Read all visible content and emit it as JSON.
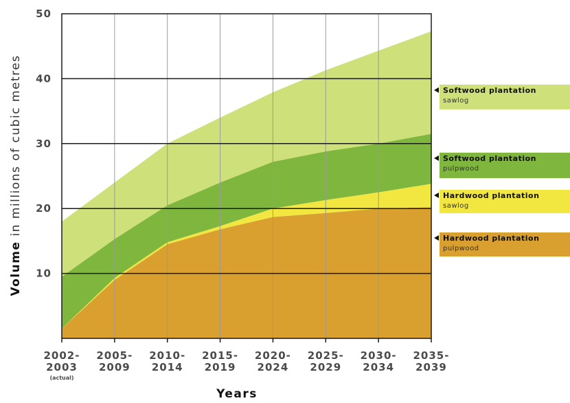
{
  "chart_data": {
    "type": "area",
    "stacked": true,
    "x": [
      "2002-2003",
      "2005-2009",
      "2010-2014",
      "2015-2019",
      "2020-2024",
      "2025-2029",
      "2030-2034",
      "2035-2039"
    ],
    "x_tick_labels": [
      [
        "2002-",
        "2003"
      ],
      [
        "2005-",
        "2009"
      ],
      [
        "2010-",
        "2014"
      ],
      [
        "2015-",
        "2019"
      ],
      [
        "2020-",
        "2024"
      ],
      [
        "2025-",
        "2029"
      ],
      [
        "2030-",
        "2034"
      ],
      [
        "2035-",
        "2039"
      ]
    ],
    "x_tick_note": "(actual)",
    "xlabel": "Years",
    "ylabel_bold": "Volume",
    "ylabel_rest": " in millions of cubic metres",
    "ylim": [
      0,
      50
    ],
    "y_ticks": [
      10,
      20,
      30,
      40,
      50
    ],
    "grid": true,
    "legend_placement": "right",
    "series": [
      {
        "name": "Hardwood plantation",
        "sub": "pulpwood",
        "color": "#d9a030",
        "values": [
          1.5,
          9.0,
          14.5,
          16.8,
          18.7,
          19.3,
          20.0,
          20.2
        ]
      },
      {
        "name": "Hardwood plantation",
        "sub": "sawlog",
        "color": "#f2e640",
        "values": [
          0.0,
          0.3,
          0.3,
          0.5,
          1.3,
          2.0,
          2.5,
          3.6
        ]
      },
      {
        "name": "Softwood plantation",
        "sub": "pulpwood",
        "color": "#7fb73e",
        "values": [
          8.0,
          6.0,
          5.7,
          6.7,
          7.2,
          7.5,
          7.5,
          7.7
        ]
      },
      {
        "name": "Softwood plantation",
        "sub": "sawlog",
        "color": "#cde07a",
        "values": [
          8.5,
          8.7,
          9.5,
          10.0,
          10.7,
          12.5,
          14.3,
          15.8
        ]
      }
    ]
  }
}
